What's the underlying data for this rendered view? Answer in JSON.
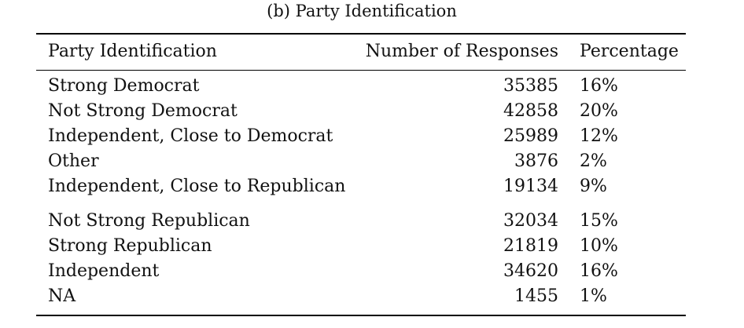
{
  "caption": "(b) Party Identification",
  "table": {
    "headers": {
      "party": "Party Identification",
      "count": "Number of Responses",
      "percentage": "Percentage"
    },
    "rows": [
      {
        "party": "Strong Democrat",
        "count": "35385",
        "percentage": "16%"
      },
      {
        "party": "Not Strong Democrat",
        "count": "42858",
        "percentage": "20%"
      },
      {
        "party": "Independent, Close to Democrat",
        "count": "25989",
        "percentage": "12%"
      },
      {
        "party": "Other",
        "count": "3876",
        "percentage": "2%"
      },
      {
        "party": "Independent, Close to Republican",
        "count": "19134",
        "percentage": "9%"
      },
      {
        "party": "Not Strong Republican",
        "count": "32034",
        "percentage": "15%"
      },
      {
        "party": "Strong Republican",
        "count": "21819",
        "percentage": "10%"
      },
      {
        "party": "Independent",
        "count": "34620",
        "percentage": "16%"
      },
      {
        "party": "NA",
        "count": "1455",
        "percentage": "1%"
      }
    ]
  }
}
